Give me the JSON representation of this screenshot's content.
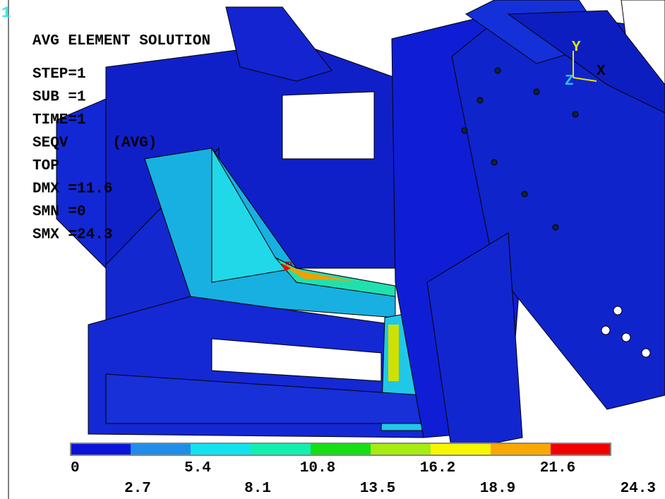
{
  "window_number": "1",
  "info": [
    "AVG ELEMENT SOLUTION",
    "STEP=1",
    "SUB =1",
    "TIME=1",
    "SEQV     (AVG)",
    "TOP",
    "DMX =11.6",
    "SMN =0",
    "SMX =24.3"
  ],
  "triad": {
    "y": "Y",
    "z": "Z",
    "x": "X"
  },
  "max_marker": "MX",
  "legend": {
    "colors": [
      "#0a14d8",
      "#1e8ee8",
      "#10e4f0",
      "#12f0b0",
      "#14e014",
      "#a6ec10",
      "#f6f600",
      "#f8a800",
      "#f00000"
    ],
    "labels": [
      0,
      2.7,
      5.4,
      8.1,
      10.8,
      13.5,
      16.2,
      18.9,
      21.6,
      24.3
    ]
  }
}
